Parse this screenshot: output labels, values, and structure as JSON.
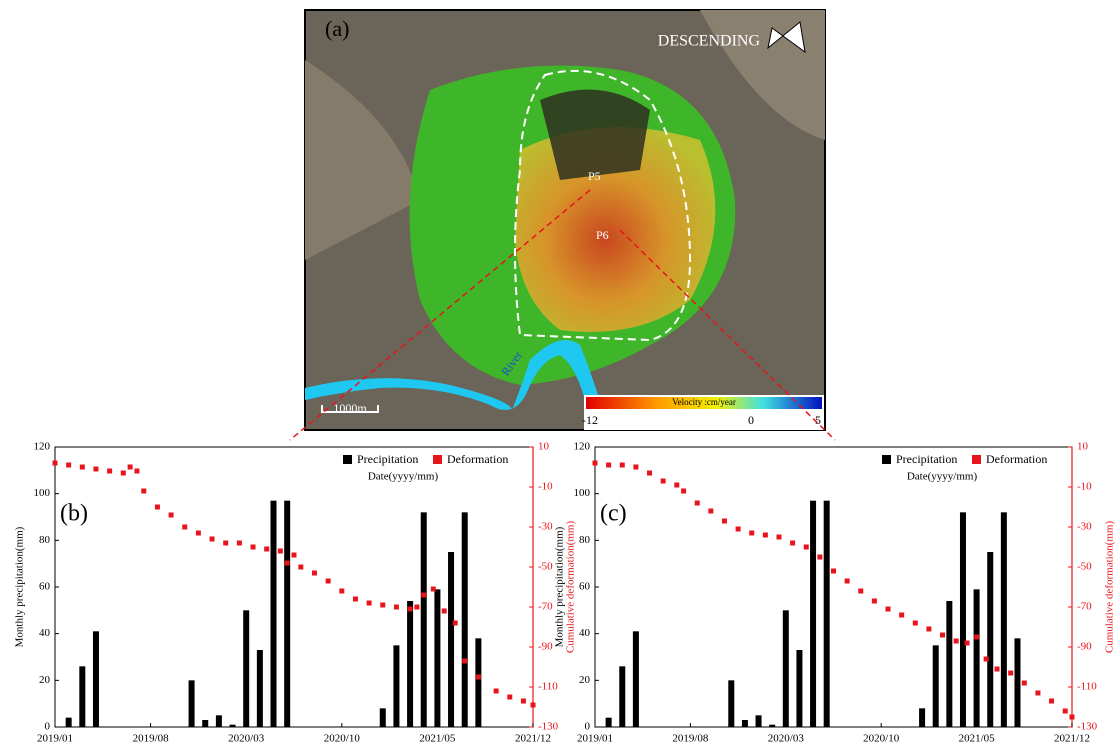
{
  "map": {
    "panel_label": "(a)",
    "orbit": "DESCENDING",
    "points": [
      "P5",
      "P6"
    ],
    "river": "River",
    "scale": "1000m",
    "colorbar": {
      "title": "Velocity :cm/year",
      "ticks": [
        -12,
        0,
        5
      ]
    }
  },
  "chart_data": [
    {
      "type": "bar",
      "panel_label": "(b)",
      "x_label": "Date(yyyy/mm)",
      "y_label": "Monthly precipitation(mm)",
      "y2_label": "Cumulative deformation(mm)",
      "xlim": [
        0,
        35
      ],
      "xticks": [
        {
          "value": 0,
          "label": "2019/01"
        },
        {
          "value": 7,
          "label": "2019/08"
        },
        {
          "value": 14,
          "label": "2020/03"
        },
        {
          "value": 21,
          "label": "2020/10"
        },
        {
          "value": 28,
          "label": "2021/05"
        },
        {
          "value": 35,
          "label": "2021/12"
        }
      ],
      "ylim": [
        0,
        120
      ],
      "yticks": [
        0,
        20,
        40,
        60,
        80,
        100,
        120
      ],
      "y2lim": [
        -130,
        10
      ],
      "y2ticks": [
        -130,
        -110,
        -90,
        -70,
        -50,
        -30,
        -10,
        10
      ],
      "series": [
        {
          "name": "Precipitation",
          "type": "bar",
          "color": "#000000",
          "x": [
            0,
            1,
            2,
            3,
            4,
            5,
            6,
            7,
            8,
            9,
            10,
            11,
            12,
            13,
            14,
            15,
            16,
            17,
            18,
            19,
            20,
            21,
            22,
            23,
            24,
            25,
            26,
            27,
            28,
            29,
            30,
            31,
            32,
            33,
            34,
            35
          ],
          "values": [
            0,
            4,
            26,
            41,
            0,
            0,
            0,
            0,
            0,
            0,
            20,
            3,
            5,
            1,
            50,
            33,
            97,
            97,
            0,
            0,
            0,
            0,
            0,
            0,
            8,
            35,
            54,
            92,
            59,
            75,
            92,
            38,
            0,
            0,
            0,
            0
          ]
        },
        {
          "name": "Deformation",
          "type": "scatter",
          "color": "#e8141b",
          "axis": "y2",
          "x": [
            0,
            1,
            2,
            3,
            4,
            5,
            5.5,
            6,
            6.5,
            7.5,
            8.5,
            9.5,
            10.5,
            11.5,
            12.5,
            13.5,
            14.5,
            15.5,
            16.5,
            17,
            17.5,
            18,
            19,
            20,
            21,
            22,
            23,
            24,
            25,
            26,
            26.5,
            27,
            27.7,
            28.5,
            29.3,
            30,
            31,
            32.3,
            33.3,
            34.3,
            35
          ],
          "values": [
            2,
            1,
            0,
            -1,
            -2,
            -3,
            0,
            -2,
            -12,
            -20,
            -24,
            -30,
            -33,
            -36,
            -38,
            -38,
            -40,
            -41,
            -42,
            -48,
            -44,
            -50,
            -53,
            -57,
            -62,
            -66,
            -68,
            -69,
            -70,
            -71,
            -70,
            -64,
            -61,
            -72,
            -78,
            -97,
            -105,
            -112,
            -115,
            -117,
            -119
          ]
        }
      ]
    },
    {
      "type": "bar",
      "panel_label": "(c)",
      "x_label": "Date(yyyy/mm)",
      "y_label": "Monthly precipitation(mm)",
      "y2_label": "Cumulative deformation(mm)",
      "xlim": [
        0,
        35
      ],
      "xticks": [
        {
          "value": 0,
          "label": "2019/01"
        },
        {
          "value": 7,
          "label": "2019/08"
        },
        {
          "value": 14,
          "label": "2020/03"
        },
        {
          "value": 21,
          "label": "2020/10"
        },
        {
          "value": 28,
          "label": "2021/05"
        },
        {
          "value": 35,
          "label": "2021/12"
        }
      ],
      "ylim": [
        0,
        120
      ],
      "yticks": [
        0,
        20,
        40,
        60,
        80,
        100,
        120
      ],
      "y2lim": [
        -130,
        10
      ],
      "y2ticks": [
        -130,
        -110,
        -90,
        -70,
        -50,
        -30,
        -10,
        10
      ],
      "series": [
        {
          "name": "Precipitation",
          "type": "bar",
          "color": "#000000",
          "x": [
            0,
            1,
            2,
            3,
            4,
            5,
            6,
            7,
            8,
            9,
            10,
            11,
            12,
            13,
            14,
            15,
            16,
            17,
            18,
            19,
            20,
            21,
            22,
            23,
            24,
            25,
            26,
            27,
            28,
            29,
            30,
            31,
            32,
            33,
            34,
            35
          ],
          "values": [
            0,
            4,
            26,
            41,
            0,
            0,
            0,
            0,
            0,
            0,
            20,
            3,
            5,
            1,
            50,
            33,
            97,
            97,
            0,
            0,
            0,
            0,
            0,
            0,
            8,
            35,
            54,
            92,
            59,
            75,
            92,
            38,
            0,
            0,
            0,
            0
          ]
        },
        {
          "name": "Deformation",
          "type": "scatter",
          "color": "#e8141b",
          "axis": "y2",
          "x": [
            0,
            1,
            2,
            3,
            4,
            5,
            6,
            6.5,
            7.5,
            8.5,
            9.5,
            10.5,
            11.5,
            12.5,
            13.5,
            14.5,
            15.5,
            16.5,
            17.5,
            18.5,
            19.5,
            20.5,
            21.5,
            22.5,
            23.5,
            24.5,
            25.5,
            26.5,
            27.3,
            28,
            28.7,
            29.5,
            30.5,
            31.5,
            32.5,
            33.5,
            34.5,
            35
          ],
          "values": [
            2,
            1,
            1,
            0,
            -3,
            -7,
            -9,
            -12,
            -18,
            -22,
            -27,
            -31,
            -33,
            -34,
            -35,
            -38,
            -40,
            -45,
            -52,
            -57,
            -62,
            -67,
            -71,
            -74,
            -78,
            -81,
            -84,
            -87,
            -88,
            -85,
            -96,
            -101,
            -103,
            -108,
            -113,
            -117,
            -122,
            -125
          ]
        }
      ]
    }
  ]
}
